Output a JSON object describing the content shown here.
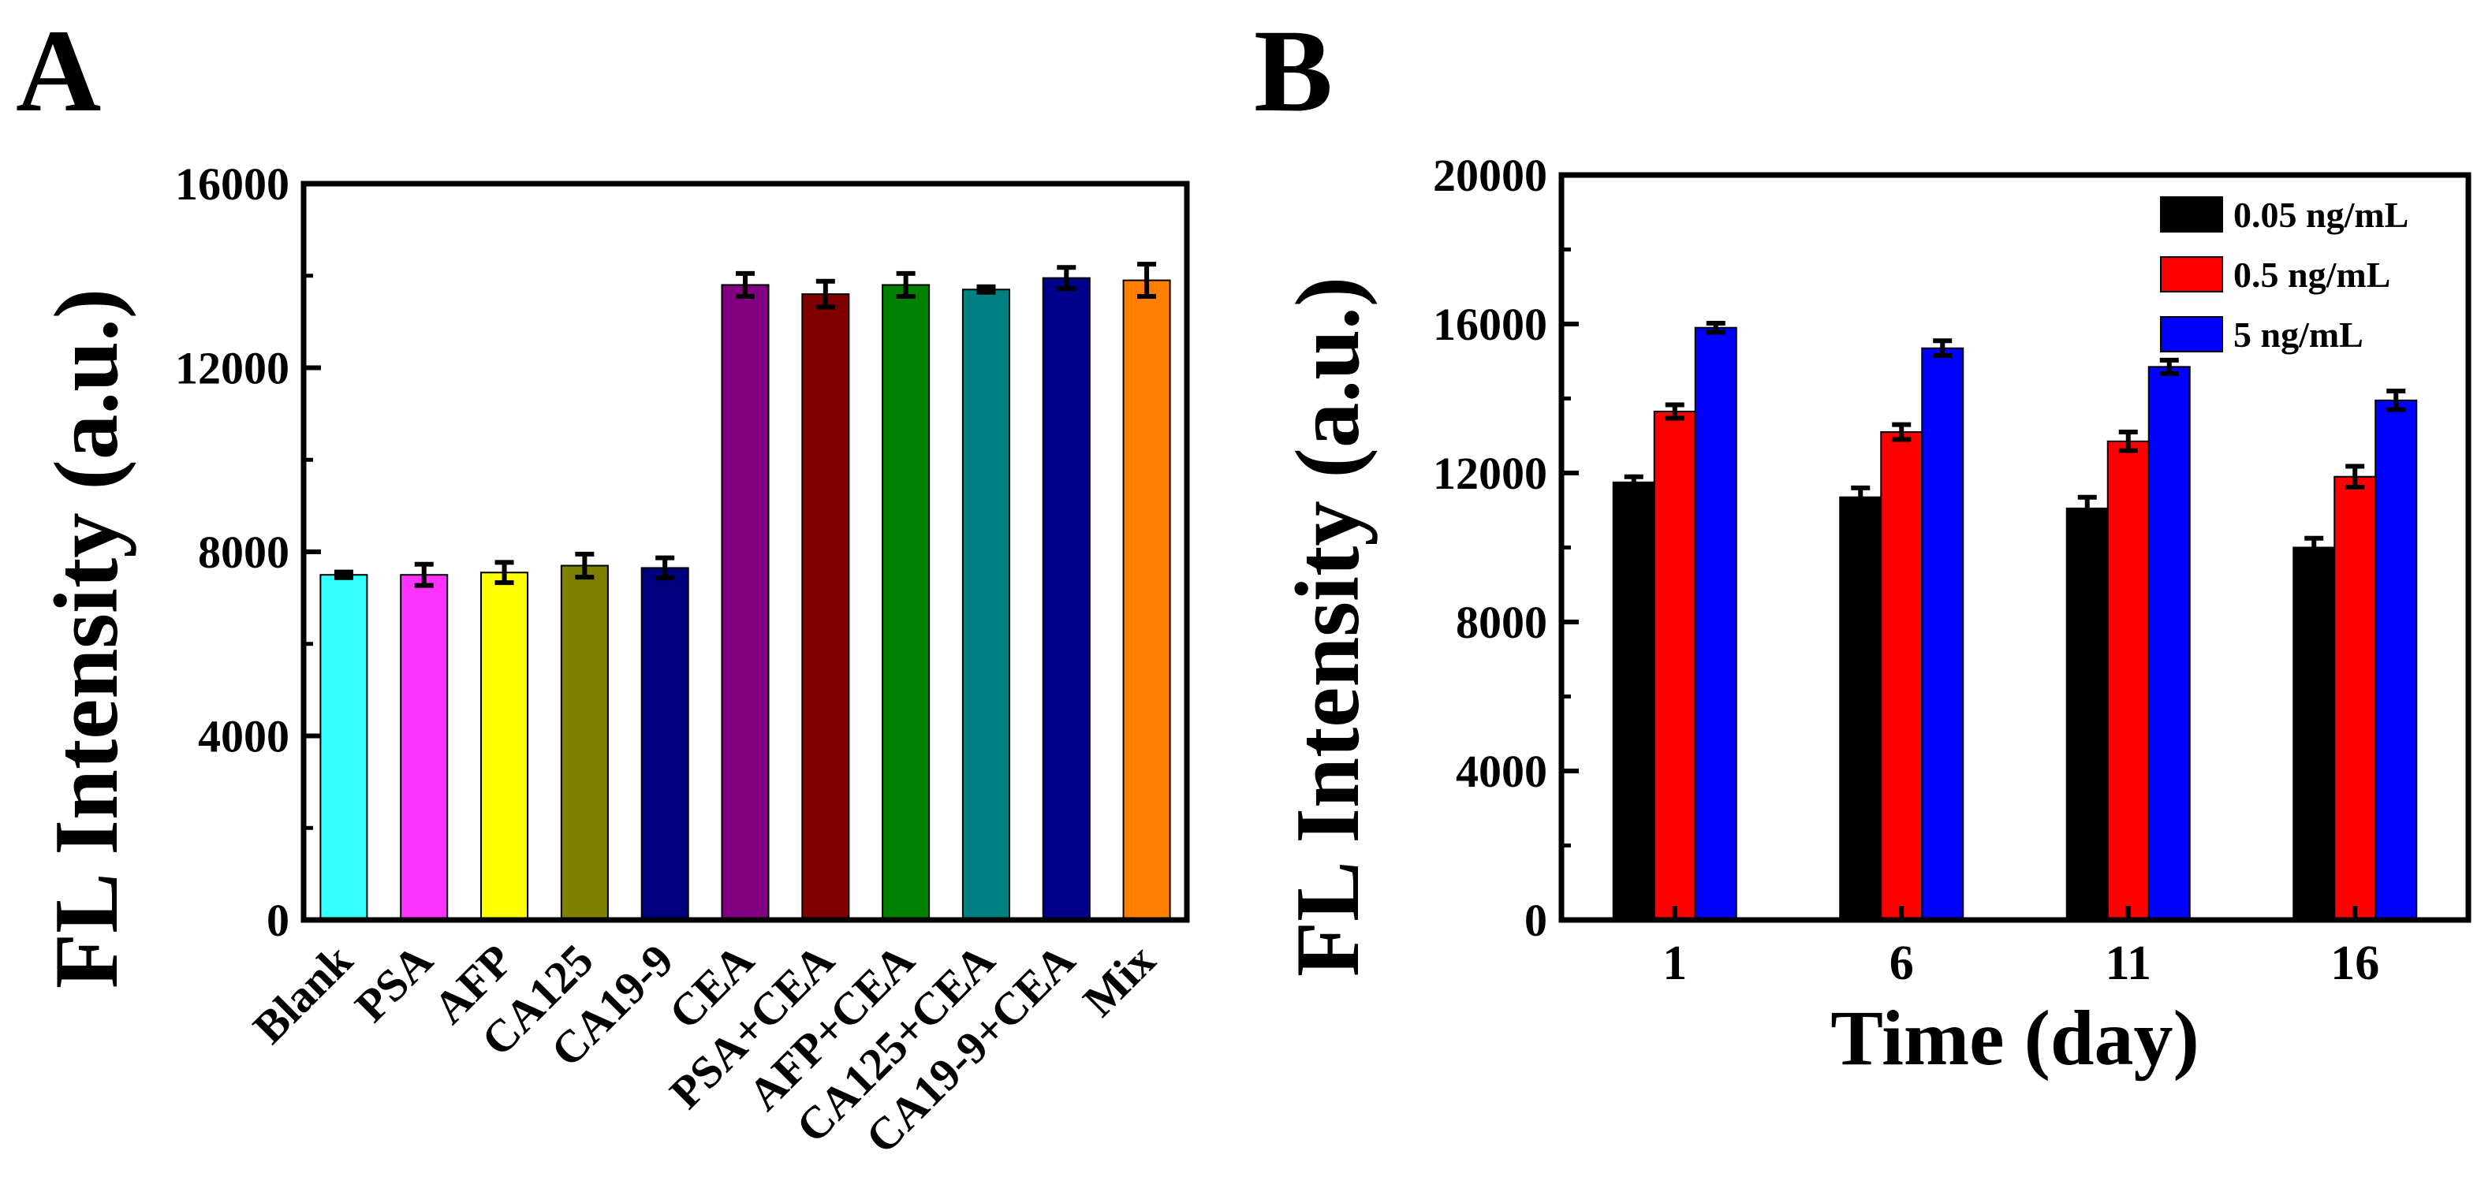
{
  "chart_data": [
    {
      "panel_label": "A",
      "type": "bar",
      "title": "",
      "xlabel": "",
      "ylabel": "FL Intensity (a.u.)",
      "ylim": [
        0,
        16000
      ],
      "yticks": [
        "0",
        "4000",
        "8000",
        "12000",
        "16000"
      ],
      "grid": false,
      "categories": [
        "Blank",
        "PSA",
        "AFP",
        "CA125",
        "CA19-9",
        "CEA",
        "PSA+CEA",
        "AFP+CEA",
        "CA125+CEA",
        "CA19-9+CEA",
        "Mix"
      ],
      "values": [
        7500,
        7500,
        7550,
        7700,
        7650,
        13800,
        13600,
        13800,
        13700,
        13950,
        13900
      ],
      "errors": [
        60,
        230,
        220,
        250,
        220,
        250,
        280,
        250,
        60,
        230,
        350
      ],
      "colors": [
        "#33ffff",
        "#ff33ff",
        "#ffff00",
        "#808000",
        "#00007f",
        "#800080",
        "#800000",
        "#008000",
        "#008080",
        "#00008b",
        "#ff8000"
      ]
    },
    {
      "panel_label": "B",
      "type": "bar",
      "title": "",
      "xlabel": "Time (day)",
      "ylabel": "FL Intensity (a.u.)",
      "ylim": [
        0,
        20000
      ],
      "yticks": [
        "0",
        "4000",
        "8000",
        "12000",
        "16000",
        "20000"
      ],
      "grid": false,
      "legend_position": "top-right",
      "categories": [
        "1",
        "6",
        "11",
        "16"
      ],
      "series": [
        {
          "name": "0.05 ng/mL",
          "color": "#000000",
          "values": [
            11750,
            11350,
            11050,
            10000
          ],
          "errors": [
            150,
            250,
            300,
            250
          ]
        },
        {
          "name": "0.5 ng/mL",
          "color": "#ff0000",
          "values": [
            13650,
            13100,
            12850,
            11900
          ],
          "errors": [
            180,
            200,
            250,
            280
          ]
        },
        {
          "name": "5 ng/mL",
          "color": "#0000ff",
          "values": [
            15900,
            15350,
            14850,
            13950
          ],
          "errors": [
            120,
            200,
            180,
            250
          ]
        }
      ]
    }
  ]
}
